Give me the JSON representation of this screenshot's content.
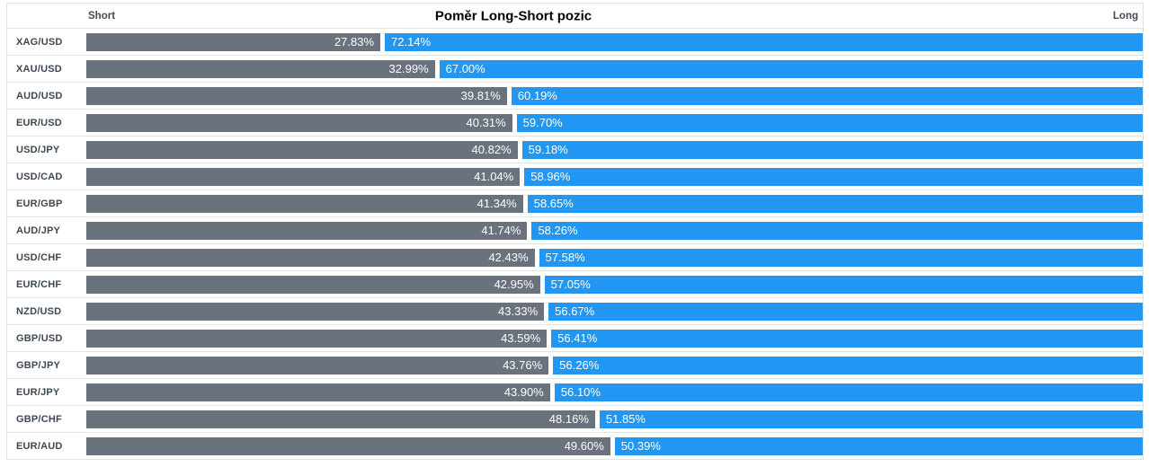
{
  "header": {
    "short_label": "Short",
    "long_label": "Long"
  },
  "colors": {
    "short_bar": "#69727d",
    "long_bar": "#2196f3",
    "label_text": "#3d4854",
    "border": "#e4e4e4",
    "value_text": "#ffffff",
    "title_text": "#000000"
  },
  "chart_data": {
    "type": "bar",
    "orientation": "horizontal-diverging",
    "title": "Poměr Long-Short pozic",
    "unit": "%",
    "legend_position": "top-axis-labels",
    "grid": false,
    "xlim": [
      0,
      100
    ],
    "categories": [
      "XAG/USD",
      "XAU/USD",
      "AUD/USD",
      "EUR/USD",
      "USD/JPY",
      "USD/CAD",
      "EUR/GBP",
      "AUD/JPY",
      "USD/CHF",
      "EUR/CHF",
      "NZD/USD",
      "GBP/USD",
      "GBP/JPY",
      "EUR/JPY",
      "GBP/CHF",
      "EUR/AUD"
    ],
    "series": [
      {
        "name": "Short",
        "color": "#69727d",
        "values": [
          27.83,
          32.99,
          39.81,
          40.31,
          40.82,
          41.04,
          41.34,
          41.74,
          42.43,
          42.95,
          43.33,
          43.59,
          43.76,
          43.9,
          48.16,
          49.6
        ]
      },
      {
        "name": "Long",
        "color": "#2196f3",
        "values": [
          72.14,
          67.0,
          60.19,
          59.7,
          59.18,
          58.96,
          58.65,
          58.26,
          57.58,
          57.05,
          56.67,
          56.41,
          56.26,
          56.1,
          51.85,
          50.39
        ]
      }
    ]
  }
}
